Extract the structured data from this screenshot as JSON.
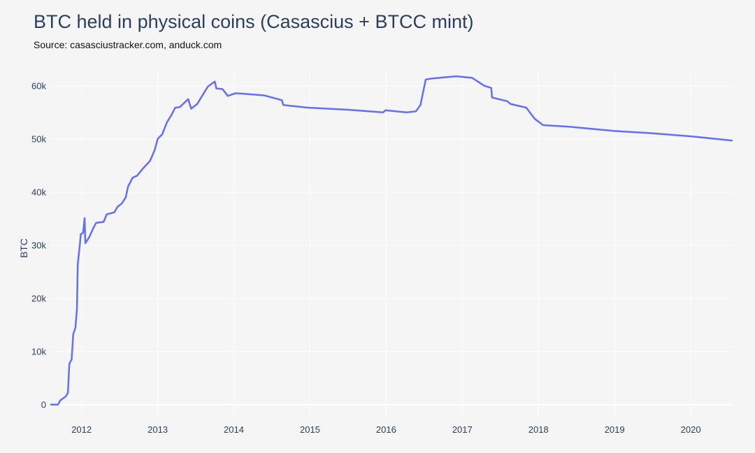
{
  "chart_data": {
    "type": "line",
    "title": "BTC held in physical coins (Casascius + BTCC mint)",
    "subtitle": "Source: casasciustracker.com, anduck.com",
    "xlabel": "",
    "ylabel": "BTC",
    "xlim": [
      2011.59,
      2020.55
    ],
    "ylim": [
      -2000,
      63000
    ],
    "x_ticks": [
      "2012",
      "2013",
      "2014",
      "2015",
      "2016",
      "2017",
      "2018",
      "2019",
      "2020"
    ],
    "y_ticks": [
      {
        "value": 0,
        "label": "0"
      },
      {
        "value": 10000,
        "label": "10k"
      },
      {
        "value": 20000,
        "label": "20k"
      },
      {
        "value": 30000,
        "label": "30k"
      },
      {
        "value": 40000,
        "label": "40k"
      },
      {
        "value": 50000,
        "label": "50k"
      },
      {
        "value": 60000,
        "label": "60k"
      }
    ],
    "grid": true,
    "line_color": "#636efa",
    "background": "#f5f5f5",
    "series": [
      {
        "x": [
          2011.59,
          2011.69,
          2011.72,
          2011.79,
          2011.82,
          2011.84,
          2011.87,
          2011.89,
          2011.92,
          2011.94,
          2011.95,
          2011.98,
          2011.99,
          2012.02,
          2012.04,
          2012.05,
          2012.1,
          2012.15,
          2012.19,
          2012.29,
          2012.33,
          2012.43,
          2012.47,
          2012.53,
          2012.58,
          2012.61,
          2012.67,
          2012.73,
          2012.81,
          2012.9,
          2012.96,
          2013.0,
          2013.06,
          2013.12,
          2013.18,
          2013.23,
          2013.29,
          2013.4,
          2013.44,
          2013.52,
          2013.6,
          2013.66,
          2013.75,
          2013.77,
          2013.85,
          2013.92,
          2014.02,
          2014.14,
          2014.4,
          2014.63,
          2014.65,
          2014.97,
          2015.5,
          2015.96,
          2015.99,
          2016.27,
          2016.39,
          2016.45,
          2016.52,
          2016.61,
          2016.92,
          2017.13,
          2017.29,
          2017.38,
          2017.39,
          2017.59,
          2017.63,
          2017.84,
          2017.95,
          2018.06,
          2018.4,
          2019.0,
          2019.46,
          2020.0,
          2020.55
        ],
        "y": [
          0,
          0,
          800,
          1500,
          2200,
          7700,
          8500,
          13200,
          14500,
          18100,
          26400,
          30500,
          32100,
          32300,
          35100,
          30400,
          31500,
          33100,
          34200,
          34400,
          35800,
          36200,
          37200,
          37900,
          39000,
          41000,
          42700,
          43100,
          44500,
          45900,
          47900,
          50000,
          50900,
          53100,
          54500,
          55900,
          56000,
          57500,
          55700,
          56600,
          58500,
          59900,
          60800,
          59500,
          59400,
          58100,
          58600,
          58500,
          58200,
          57300,
          56400,
          55900,
          55500,
          55000,
          55400,
          55000,
          55200,
          56400,
          61200,
          61400,
          61800,
          61500,
          60000,
          59600,
          57800,
          57100,
          56600,
          55900,
          53800,
          52600,
          52300,
          51500,
          51100,
          50500,
          49700
        ]
      }
    ]
  }
}
